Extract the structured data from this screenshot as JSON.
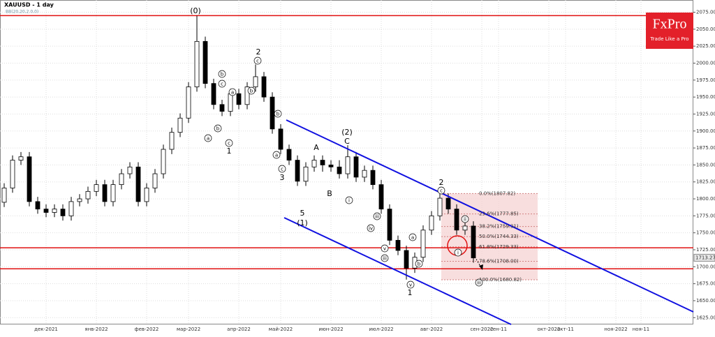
{
  "chart_data": {
    "type": "candlestick",
    "title": "XAUUSD - 1 day",
    "subtitle": "BB(20,20,2.0,0)",
    "categories": [
      null,
      null,
      null,
      null,
      null,
      "дек-2021",
      null,
      null,
      null,
      null,
      null,
      "янв-2022",
      null,
      null,
      null,
      null,
      null,
      "фев-2022",
      null,
      null,
      null,
      null,
      "мар-2022",
      null,
      null,
      null,
      null,
      null,
      "апр-2022",
      null,
      null,
      null,
      null,
      "май-2022",
      null,
      null,
      null,
      null,
      null,
      "июн-2022",
      null,
      null,
      null,
      null,
      null,
      "июл-2022",
      null,
      null,
      null,
      null,
      null,
      "авг-2022",
      null,
      null,
      null,
      null,
      null,
      "сен-2022",
      null,
      "сен-11",
      null,
      null,
      null,
      null,
      null,
      "окт-2022",
      null,
      "окт-11",
      null,
      null,
      null,
      null,
      null,
      "ноя-2022",
      null,
      null,
      "ноя-11",
      null,
      null,
      null,
      null,
      null,
      null
    ],
    "open": [
      1795,
      1816,
      1857,
      1862,
      1796,
      1785,
      1780,
      1785,
      1775,
      1796,
      1800,
      1811,
      1821,
      1796,
      1821,
      1837,
      1847,
      1796,
      1816,
      1837,
      1873,
      1898,
      1919,
      1965,
      2032,
      1970,
      1939,
      1929,
      1955,
      1939,
      1965,
      1980,
      1950,
      1903,
      1873,
      1857,
      1826,
      1847,
      1857,
      1850,
      1847,
      1837,
      1862,
      1832,
      1842,
      1821,
      1785,
      1739,
      1724,
      1698,
      1714,
      1754,
      1775,
      1801,
      1785,
      1754,
      1760,
      null,
      null,
      null,
      null,
      null,
      null,
      null,
      null,
      null,
      null,
      null,
      null,
      null,
      null,
      null,
      null,
      null,
      null,
      null,
      null,
      null,
      null,
      null,
      null,
      null,
      null
    ],
    "high": [
      1823,
      1864,
      1869,
      1869,
      1803,
      1792,
      1792,
      1792,
      1803,
      1807,
      1818,
      1828,
      1828,
      1828,
      1844,
      1854,
      1854,
      1823,
      1844,
      1880,
      1905,
      1926,
      1972,
      2070,
      2039,
      1977,
      1946,
      1962,
      1962,
      1972,
      1998,
      1987,
      1957,
      1910,
      1880,
      1864,
      1854,
      1864,
      1864,
      1857,
      1857,
      1879,
      1869,
      1849,
      1849,
      1828,
      1792,
      1746,
      1731,
      1721,
      1761,
      1782,
      1808,
      1808,
      1792,
      1767,
      1767,
      null,
      null,
      null,
      null,
      null,
      null,
      null,
      null,
      null,
      null,
      null,
      null,
      null,
      null,
      null,
      null,
      null,
      null,
      null,
      null,
      null,
      null,
      null,
      null,
      null,
      null
    ],
    "low": [
      1788,
      1809,
      1850,
      1789,
      1778,
      1773,
      1773,
      1768,
      1768,
      1789,
      1793,
      1804,
      1789,
      1789,
      1814,
      1830,
      1789,
      1789,
      1809,
      1830,
      1866,
      1891,
      1912,
      1958,
      1963,
      1932,
      1922,
      1922,
      1932,
      1932,
      1958,
      1943,
      1896,
      1866,
      1850,
      1819,
      1819,
      1840,
      1840,
      1840,
      1830,
      1830,
      1825,
      1825,
      1814,
      1778,
      1732,
      1717,
      1681,
      1691,
      1707,
      1747,
      1768,
      1778,
      1747,
      1747,
      1706,
      null,
      null,
      null,
      null,
      null,
      null,
      null,
      null,
      null,
      null,
      null,
      null,
      null,
      null,
      null,
      null,
      null,
      null,
      null,
      null,
      null,
      null,
      null,
      null,
      null,
      null
    ],
    "close": [
      1816,
      1857,
      1862,
      1796,
      1785,
      1780,
      1785,
      1775,
      1796,
      1800,
      1811,
      1821,
      1796,
      1821,
      1837,
      1847,
      1796,
      1816,
      1837,
      1873,
      1898,
      1919,
      1965,
      2032,
      1970,
      1939,
      1929,
      1955,
      1939,
      1965,
      1980,
      1950,
      1903,
      1873,
      1857,
      1826,
      1847,
      1857,
      1850,
      1847,
      1837,
      1862,
      1832,
      1842,
      1821,
      1785,
      1739,
      1724,
      1698,
      1714,
      1754,
      1775,
      1801,
      1785,
      1754,
      1760,
      1713,
      null,
      null,
      null,
      null,
      null,
      null,
      null,
      null,
      null,
      null,
      null,
      null,
      null,
      null,
      null,
      null,
      null,
      null,
      null,
      null,
      null,
      null,
      null,
      null,
      null,
      null
    ],
    "up_color": "#ffffff",
    "down_color": "#000000",
    "ylim": [
      1615,
      2093
    ],
    "yticks": [
      {
        "value": 2075,
        "label": "2075.00"
      },
      {
        "value": 2050,
        "label": "2050.00"
      },
      {
        "value": 2025,
        "label": "2025.00"
      },
      {
        "value": 2000,
        "label": "2000.00"
      },
      {
        "value": 1975,
        "label": "1975.00"
      },
      {
        "value": 1950,
        "label": "1950.00"
      },
      {
        "value": 1925,
        "label": "1925.00"
      },
      {
        "value": 1900,
        "label": "1900.00"
      },
      {
        "value": 1875,
        "label": "1875.00"
      },
      {
        "value": 1850,
        "label": "1850.00"
      },
      {
        "value": 1825,
        "label": "1825.00"
      },
      {
        "value": 1800,
        "label": "1800.00"
      },
      {
        "value": 1775,
        "label": "1775.00"
      },
      {
        "value": 1750,
        "label": "1750.00"
      },
      {
        "value": 1725,
        "label": "1725.00"
      },
      {
        "value": 1700,
        "label": "1700.00"
      },
      {
        "value": 1675,
        "label": "1675.00"
      },
      {
        "value": 1650,
        "label": "1650.00"
      },
      {
        "value": 1625,
        "label": "1625.00"
      }
    ],
    "grid": true,
    "last_price": 1713.27,
    "levels": [
      {
        "value": 2070,
        "color": "#e01010"
      },
      {
        "value": 1728,
        "color": "#e01010"
      },
      {
        "value": 1697,
        "color": "#e01010"
      }
    ],
    "fib_levels": [
      {
        "value": 1807.82,
        "label": "0.0%(1807.82)"
      },
      {
        "value": 1777.85,
        "label": "23.6%(1777.85)"
      },
      {
        "value": 1759.31,
        "label": "38.2%(1759.31)"
      },
      {
        "value": 1744.33,
        "label": "50.0%(1744.33)"
      },
      {
        "value": 1729.33,
        "label": "61.8%(1729.33)"
      },
      {
        "value": 1708.0,
        "label": "78.6%(1708.00)"
      },
      {
        "value": 1680.82,
        "label": "100.0%(1680.82)"
      }
    ],
    "annotations": [
      "(0)",
      "2",
      "c",
      "b",
      "c",
      "a",
      "b",
      "a",
      "b",
      "c",
      "1",
      "b",
      "a",
      "c",
      "3",
      "5",
      "(1)",
      "A",
      "B",
      "C",
      "(2)",
      "i",
      "iii",
      "iv",
      "v",
      "iii",
      "a",
      "b",
      "v",
      "1",
      "2",
      "c",
      "ii",
      "i",
      "iii"
    ]
  },
  "logo": {
    "name": "FxPro",
    "tagline": "Trade Like a Pro"
  }
}
